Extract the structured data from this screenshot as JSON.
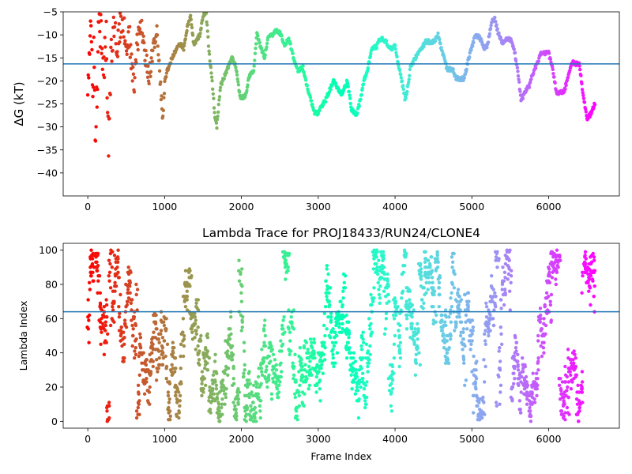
{
  "chart_data": [
    {
      "type": "scatter",
      "title": "",
      "ylabel": "ΔG (kT)",
      "xlabel": "",
      "xlim": [
        -320,
        6920
      ],
      "ylim": [
        -45,
        -5
      ],
      "xticks": [
        0,
        1000,
        2000,
        3000,
        4000,
        5000,
        6000
      ],
      "yticks": [
        -40,
        -35,
        -30,
        -25,
        -20,
        -15,
        -10,
        -5
      ],
      "hline": -16.3,
      "hline_color": "#1f77b4",
      "colormap": "rainbow (frame index: late=purple, early=red)",
      "n_frames": 6600,
      "trace_points": [
        [
          0,
          -20
        ],
        [
          40,
          -8
        ],
        [
          60,
          -23
        ],
        [
          80,
          -12
        ],
        [
          100,
          -36.5
        ],
        [
          130,
          -14
        ],
        [
          160,
          -7
        ],
        [
          200,
          -20
        ],
        [
          240,
          -10
        ],
        [
          270,
          -33
        ],
        [
          300,
          -15
        ],
        [
          340,
          -6
        ],
        [
          380,
          -12
        ],
        [
          420,
          -9
        ],
        [
          460,
          -6
        ],
        [
          500,
          -13
        ],
        [
          540,
          -10
        ],
        [
          600,
          -22
        ],
        [
          640,
          -12
        ],
        [
          700,
          -8
        ],
        [
          760,
          -16
        ],
        [
          800,
          -19
        ],
        [
          860,
          -12
        ],
        [
          900,
          -9
        ],
        [
          950,
          -22
        ],
        [
          980,
          -29
        ],
        [
          1000,
          -20
        ],
        [
          1050,
          -17
        ],
        [
          1100,
          -15
        ],
        [
          1150,
          -13
        ],
        [
          1200,
          -12
        ],
        [
          1250,
          -13
        ],
        [
          1300,
          -8
        ],
        [
          1340,
          -6
        ],
        [
          1380,
          -12
        ],
        [
          1420,
          -11
        ],
        [
          1460,
          -10
        ],
        [
          1500,
          -6
        ],
        [
          1540,
          -5
        ],
        [
          1580,
          -14
        ],
        [
          1620,
          -20
        ],
        [
          1650,
          -27
        ],
        [
          1680,
          -30
        ],
        [
          1700,
          -26
        ],
        [
          1730,
          -21
        ],
        [
          1780,
          -19
        ],
        [
          1830,
          -17
        ],
        [
          1880,
          -15
        ],
        [
          1930,
          -17
        ],
        [
          1980,
          -23.5
        ],
        [
          2050,
          -23.5
        ],
        [
          2100,
          -19
        ],
        [
          2160,
          -18
        ],
        [
          2200,
          -9.5
        ],
        [
          2240,
          -12
        ],
        [
          2300,
          -15
        ],
        [
          2350,
          -10
        ],
        [
          2400,
          -10
        ],
        [
          2450,
          -9
        ],
        [
          2500,
          -9.5
        ],
        [
          2560,
          -12
        ],
        [
          2620,
          -11
        ],
        [
          2680,
          -15
        ],
        [
          2740,
          -18
        ],
        [
          2800,
          -17
        ],
        [
          2850,
          -21
        ],
        [
          2900,
          -24
        ],
        [
          2950,
          -27
        ],
        [
          3000,
          -27
        ],
        [
          3100,
          -24
        ],
        [
          3200,
          -20
        ],
        [
          3300,
          -23
        ],
        [
          3380,
          -20
        ],
        [
          3430,
          -26
        ],
        [
          3500,
          -27.5
        ],
        [
          3550,
          -24
        ],
        [
          3600,
          -19.5
        ],
        [
          3650,
          -17
        ],
        [
          3700,
          -13
        ],
        [
          3760,
          -12.5
        ],
        [
          3800,
          -11
        ],
        [
          3850,
          -11
        ],
        [
          3900,
          -12
        ],
        [
          3950,
          -13
        ],
        [
          4000,
          -12.5
        ],
        [
          4050,
          -17
        ],
        [
          4100,
          -21
        ],
        [
          4130,
          -24
        ],
        [
          4160,
          -22
        ],
        [
          4200,
          -17
        ],
        [
          4300,
          -14
        ],
        [
          4400,
          -11.5
        ],
        [
          4500,
          -11.5
        ],
        [
          4560,
          -10
        ],
        [
          4600,
          -13
        ],
        [
          4680,
          -17.5
        ],
        [
          4750,
          -17.5
        ],
        [
          4800,
          -19.5
        ],
        [
          4900,
          -19.5
        ],
        [
          4960,
          -15
        ],
        [
          5000,
          -12.5
        ],
        [
          5050,
          -10
        ],
        [
          5100,
          -10.5
        ],
        [
          5160,
          -13
        ],
        [
          5200,
          -12.5
        ],
        [
          5260,
          -7
        ],
        [
          5300,
          -6.5
        ],
        [
          5340,
          -9.5
        ],
        [
          5400,
          -12
        ],
        [
          5450,
          -11
        ],
        [
          5500,
          -11
        ],
        [
          5550,
          -13
        ],
        [
          5600,
          -18
        ],
        [
          5640,
          -24.5
        ],
        [
          5700,
          -22
        ],
        [
          5750,
          -21
        ],
        [
          5800,
          -18
        ],
        [
          5850,
          -16.5
        ],
        [
          5900,
          -14
        ],
        [
          5950,
          -14
        ],
        [
          6000,
          -14
        ],
        [
          6050,
          -17
        ],
        [
          6100,
          -22.5
        ],
        [
          6200,
          -22.5
        ],
        [
          6250,
          -19
        ],
        [
          6300,
          -16
        ],
        [
          6400,
          -16.5
        ],
        [
          6450,
          -23
        ],
        [
          6500,
          -28.5
        ],
        [
          6550,
          -27
        ],
        [
          6600,
          -25
        ]
      ]
    },
    {
      "type": "scatter",
      "title": "Lambda Trace for PROJ18433/RUN24/CLONE4",
      "xlabel": "Frame Index",
      "ylabel": "Lambda Index",
      "xlim": [
        -320,
        6920
      ],
      "ylim": [
        -4,
        104
      ],
      "xticks": [
        0,
        1000,
        2000,
        3000,
        4000,
        5000,
        6000
      ],
      "yticks": [
        0,
        20,
        40,
        60,
        80,
        100
      ],
      "hline": 64,
      "hline_color": "#1f77b4",
      "colormap": "rainbow (frame index: late=purple, early=red)",
      "n_frames": 6600,
      "lambda_range": [
        0,
        100
      ]
    }
  ]
}
